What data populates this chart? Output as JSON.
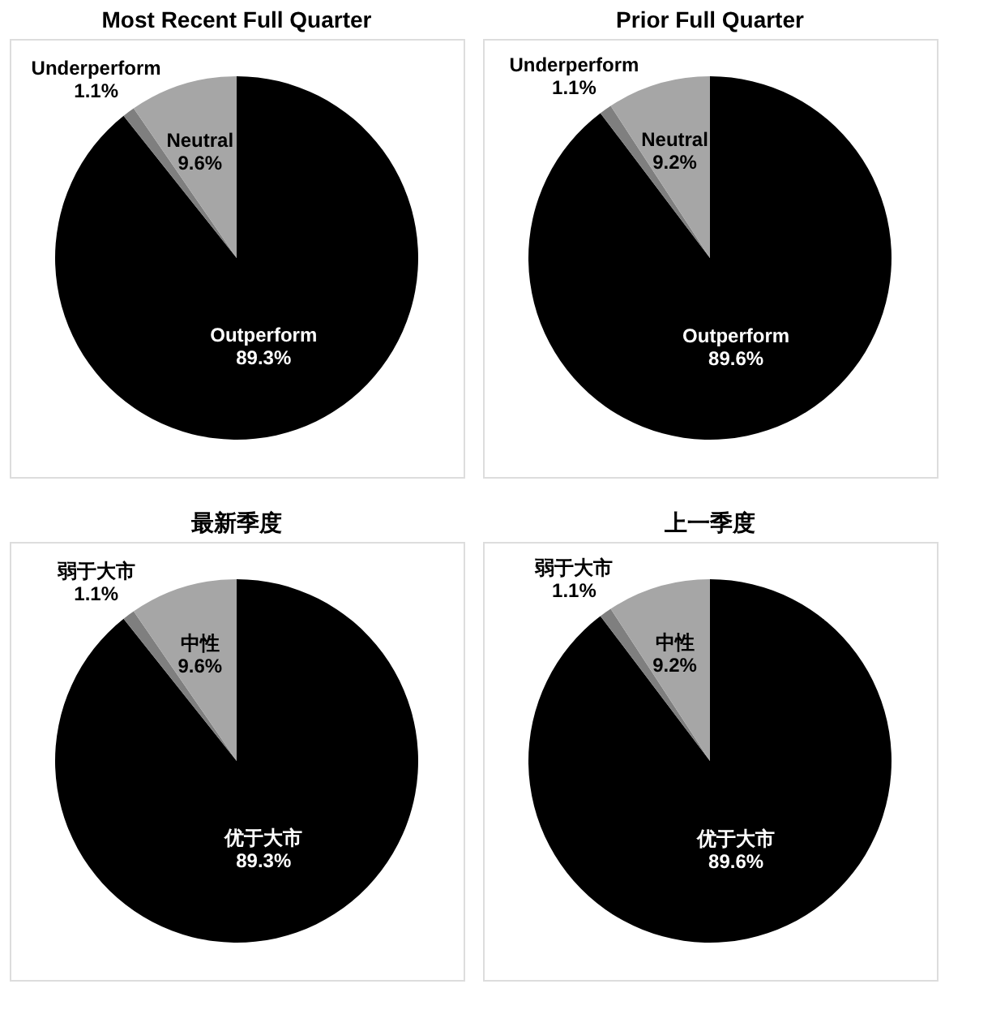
{
  "chart_data": [
    {
      "type": "pie",
      "title": "Most Recent Full Quarter",
      "categories": [
        "Outperform",
        "Underperform",
        "Neutral"
      ],
      "values": [
        89.3,
        1.1,
        9.6
      ],
      "colors": [
        "#000000",
        "#7f7f7f",
        "#a6a6a6"
      ],
      "value_labels": [
        "89.3%",
        "1.1%",
        "9.6%"
      ]
    },
    {
      "type": "pie",
      "title": "Prior Full Quarter",
      "categories": [
        "Outperform",
        "Underperform",
        "Neutral"
      ],
      "values": [
        89.6,
        1.1,
        9.2
      ],
      "colors": [
        "#000000",
        "#7f7f7f",
        "#a6a6a6"
      ],
      "value_labels": [
        "89.6%",
        "1.1%",
        "9.2%"
      ]
    },
    {
      "type": "pie",
      "title": "最新季度",
      "categories": [
        "优于大市",
        "弱于大市",
        "中性"
      ],
      "values": [
        89.3,
        1.1,
        9.6
      ],
      "colors": [
        "#000000",
        "#7f7f7f",
        "#a6a6a6"
      ],
      "value_labels": [
        "89.3%",
        "1.1%",
        "9.6%"
      ]
    },
    {
      "type": "pie",
      "title": "上一季度",
      "categories": [
        "优于大市",
        "弱于大市",
        "中性"
      ],
      "values": [
        89.6,
        1.1,
        9.2
      ],
      "colors": [
        "#000000",
        "#7f7f7f",
        "#a6a6a6"
      ],
      "value_labels": [
        "89.6%",
        "1.1%",
        "9.2%"
      ]
    }
  ]
}
